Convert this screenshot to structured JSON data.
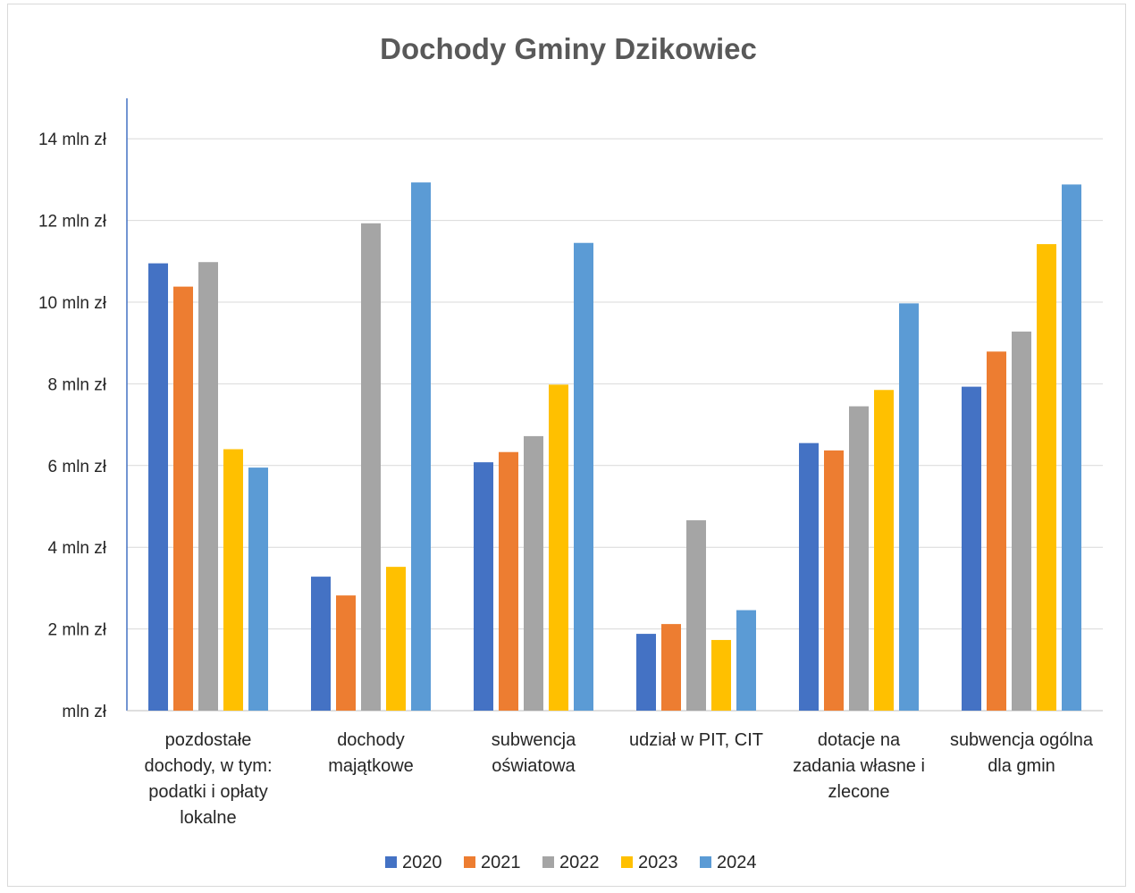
{
  "chart_data": {
    "type": "bar",
    "title": "Dochody Gminy Dzikowiec",
    "y_unit": "mln zł",
    "ylim": [
      0,
      14
    ],
    "y_ticks": [
      0,
      2,
      4,
      6,
      8,
      10,
      12,
      14
    ],
    "y_tick_labels": [
      "mln zł",
      "2  mln zł",
      "4  mln zł",
      "6  mln zł",
      "8  mln zł",
      "10  mln zł",
      "12  mln zł",
      "14  mln zł"
    ],
    "grid": true,
    "legend_position": "bottom",
    "categories": [
      [
        "pozdostałe",
        "dochody, w tym:",
        "podatki i opłaty",
        "lokalne"
      ],
      [
        "dochody",
        "majątkowe"
      ],
      [
        "subwencja",
        "oświatowa"
      ],
      [
        "udział w PIT, CIT"
      ],
      [
        "dotacje na",
        "zadania własne i",
        "zlecone"
      ],
      [
        "subwencja ogólna",
        "dla gmin"
      ]
    ],
    "series": [
      {
        "name": "2020",
        "color": "#4472C4",
        "values": [
          10.95,
          3.28,
          6.08,
          1.88,
          6.55,
          7.93
        ]
      },
      {
        "name": "2021",
        "color": "#ED7D31",
        "values": [
          10.38,
          2.82,
          6.33,
          2.12,
          6.37,
          8.79
        ]
      },
      {
        "name": "2022",
        "color": "#A5A5A5",
        "values": [
          10.98,
          11.93,
          6.72,
          4.66,
          7.45,
          9.28
        ]
      },
      {
        "name": "2023",
        "color": "#FFC000",
        "values": [
          6.4,
          3.52,
          7.98,
          1.73,
          7.85,
          11.42
        ]
      },
      {
        "name": "2024",
        "color": "#5B9BD5",
        "values": [
          5.95,
          12.93,
          11.45,
          2.46,
          9.97,
          12.88
        ]
      }
    ]
  }
}
